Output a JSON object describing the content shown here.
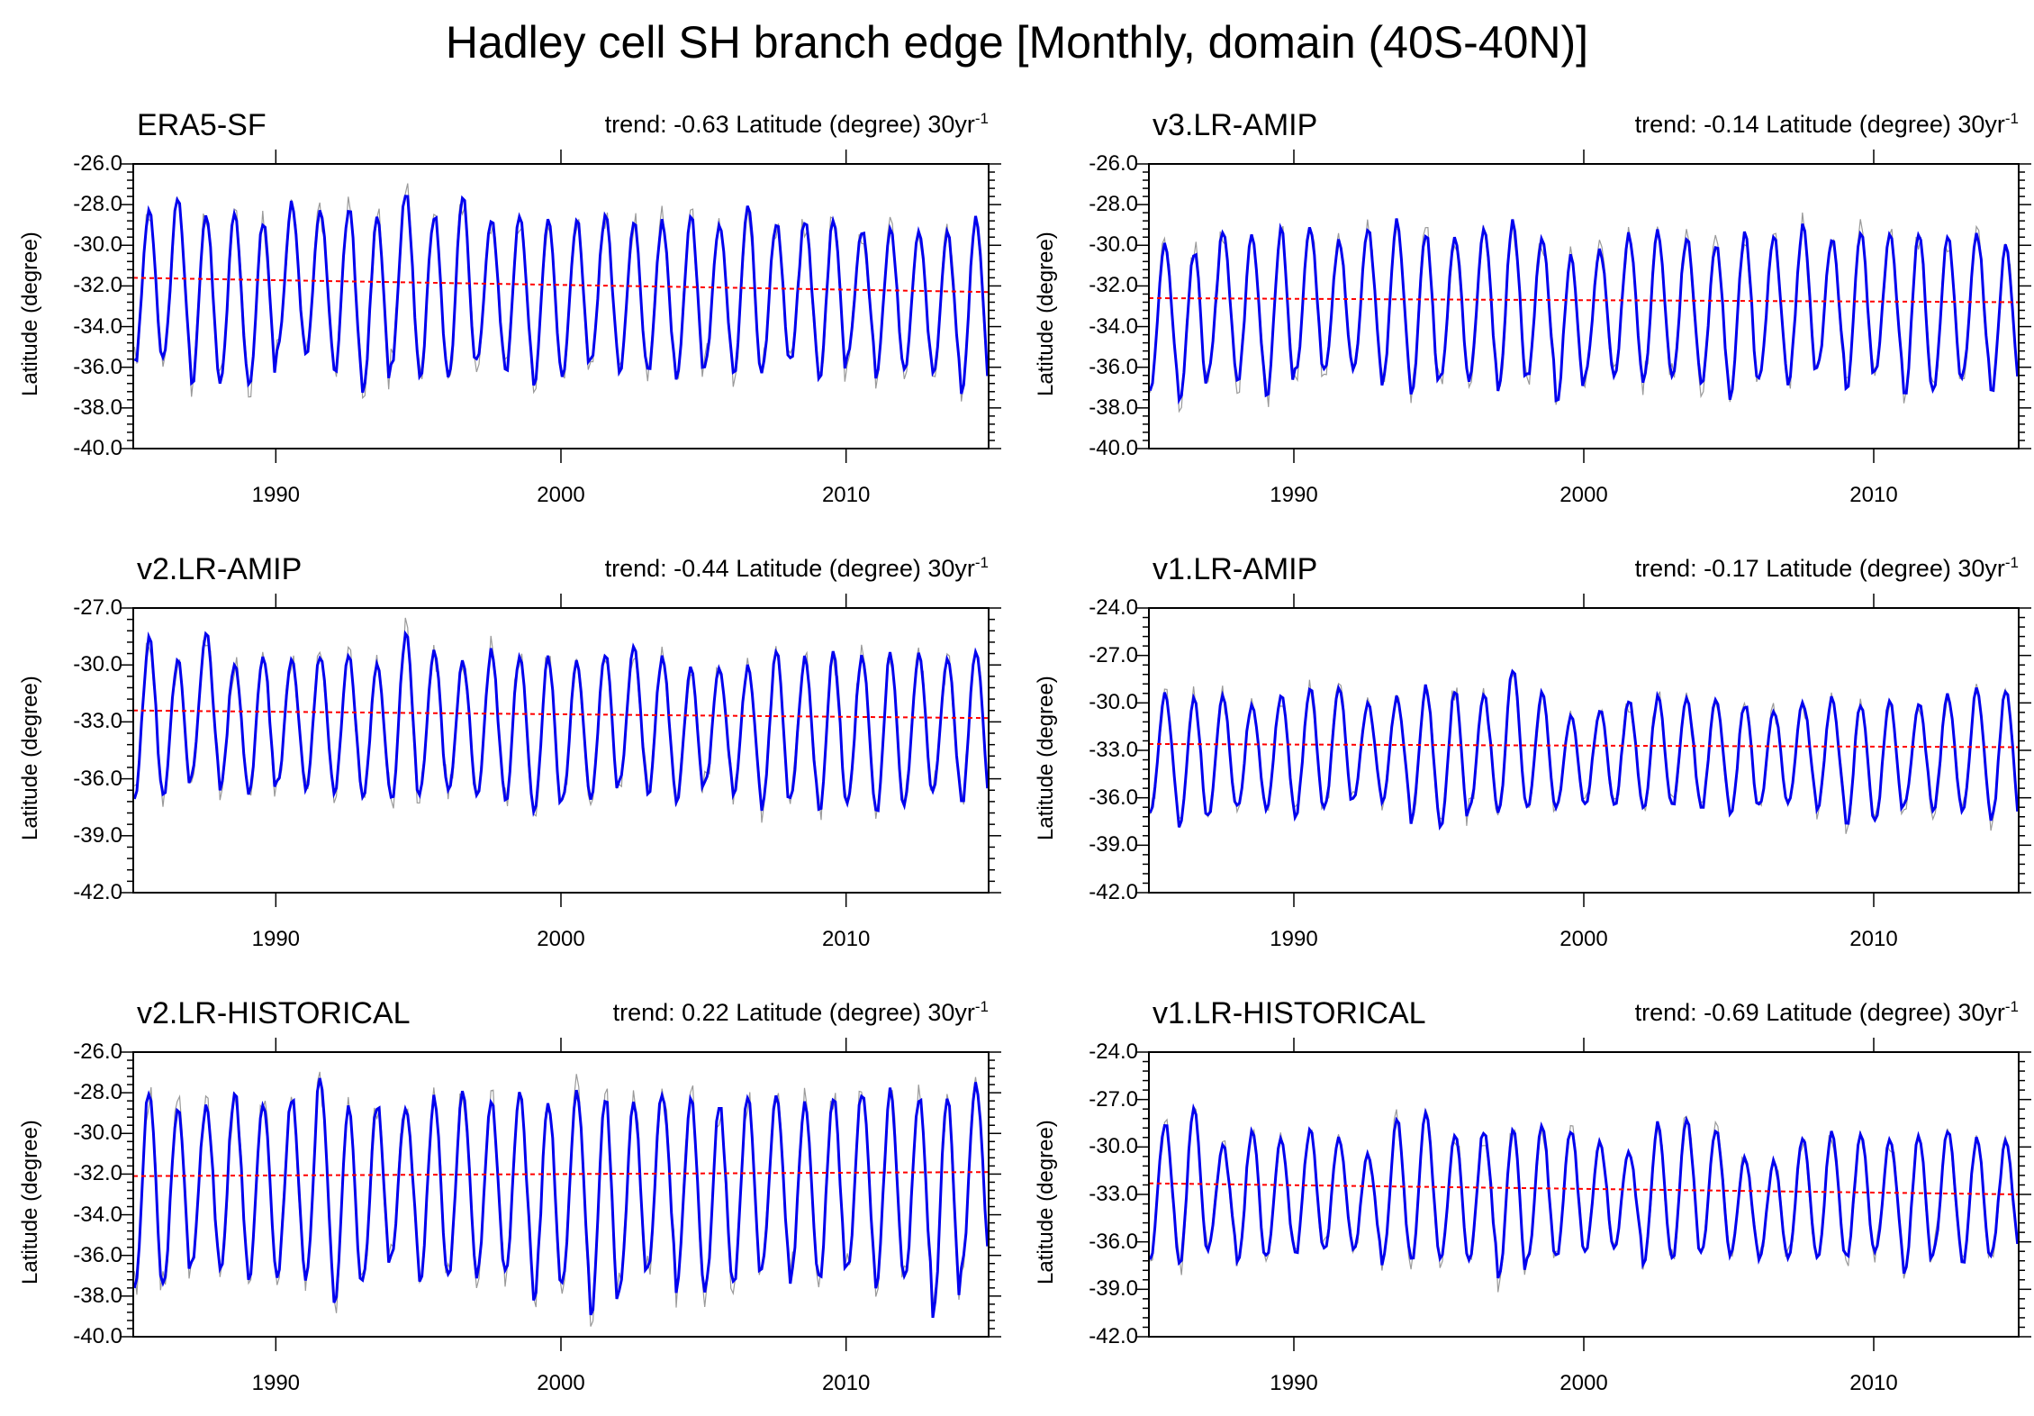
{
  "title": "Hadley cell SH branch edge [Monthly, domain (40S-40N)]",
  "trend_suffix": "30yr",
  "trend_exponent": "-1",
  "colors": {
    "smoothed": "#0000ee",
    "raw": "#9a9a9a",
    "trend": "#ff0000",
    "axis": "#000000"
  },
  "chart_data": [
    {
      "type": "line",
      "name": "ERA5-SF",
      "trend_text": "trend: -0.63 Latitude (degree)",
      "ylabel": "Latitude (degree)",
      "xlim": [
        1985,
        2015
      ],
      "ylim": [
        -40,
        -26
      ],
      "yticks": [
        "-26.0",
        "-28.0",
        "-30.0",
        "-32.0",
        "-34.0",
        "-36.0",
        "-38.0",
        "-40.0"
      ],
      "xticks": [
        "1990",
        "2000",
        "2010"
      ],
      "series": [
        {
          "name": "smoothed",
          "x_start": 1985.0,
          "x_end": 2015.0,
          "annual_max": [
            -28.2,
            -27.8,
            -28.4,
            -28.5,
            -28.8,
            -28.0,
            -28.3,
            -28.2,
            -28.5,
            -27.4,
            -28.5,
            -27.6,
            -28.8,
            -28.6,
            -28.5,
            -28.7,
            -28.6,
            -28.9,
            -28.9,
            -28.6,
            -29.0,
            -27.9,
            -28.8,
            -28.8,
            -28.6,
            -29.3,
            -29.2,
            -29.4,
            -29.5,
            -28.6
          ],
          "annual_min": [
            -35.8,
            -35.5,
            -36.9,
            -36.6,
            -37.0,
            -35.1,
            -35.5,
            -36.3,
            -37.3,
            -35.8,
            -36.5,
            -36.5,
            -35.6,
            -36.3,
            -36.7,
            -36.4,
            -35.8,
            -36.2,
            -36.2,
            -36.7,
            -35.9,
            -36.5,
            -36.1,
            -35.7,
            -36.7,
            -35.3,
            -36.4,
            -36.0,
            -36.4,
            -37.1
          ]
        },
        {
          "name": "trend",
          "start": -31.6,
          "end": -32.3
        }
      ]
    },
    {
      "type": "line",
      "name": "v3.LR-AMIP",
      "trend_text": "trend: -0.14 Latitude (degree)",
      "ylabel": "Latitude (degree)",
      "xlim": [
        1985,
        2015
      ],
      "ylim": [
        -40,
        -26
      ],
      "yticks": [
        "-26.0",
        "-28.0",
        "-30.0",
        "-32.0",
        "-34.0",
        "-36.0",
        "-38.0",
        "-40.0"
      ],
      "xticks": [
        "1990",
        "2000",
        "2010"
      ],
      "series": [
        {
          "name": "smoothed",
          "x_start": 1985.0,
          "x_end": 2015.0,
          "annual_max": [
            -29.9,
            -30.3,
            -29.3,
            -29.6,
            -29.3,
            -29.2,
            -29.8,
            -29.2,
            -28.8,
            -29.5,
            -29.6,
            -29.2,
            -28.8,
            -29.6,
            -30.6,
            -30.2,
            -29.5,
            -29.4,
            -29.6,
            -29.9,
            -29.4,
            -29.6,
            -29.1,
            -29.6,
            -29.4,
            -29.4,
            -29.3,
            -29.4,
            -29.4,
            -30.1
          ],
          "annual_min": [
            -37.0,
            -37.7,
            -36.3,
            -36.7,
            -37.5,
            -36.3,
            -36.2,
            -36.1,
            -36.8,
            -37.4,
            -36.6,
            -36.6,
            -37.0,
            -36.5,
            -37.8,
            -36.4,
            -36.5,
            -36.6,
            -36.3,
            -37.0,
            -37.4,
            -36.6,
            -36.7,
            -36.1,
            -37.2,
            -36.3,
            -37.5,
            -37.2,
            -36.4,
            -37.3
          ]
        },
        {
          "name": "trend",
          "start": -32.6,
          "end": -32.8
        }
      ]
    },
    {
      "type": "line",
      "name": "v2.LR-AMIP",
      "trend_text": "trend: -0.44 Latitude (degree)",
      "ylabel": "Latitude (degree)",
      "xlim": [
        1985,
        2015
      ],
      "ylim": [
        -42,
        -27
      ],
      "yticks": [
        "-27.0",
        "-30.0",
        "-33.0",
        "-36.0",
        "-39.0",
        "-42.0"
      ],
      "xticks": [
        "1990",
        "2000",
        "2010"
      ],
      "series": [
        {
          "name": "smoothed",
          "x_start": 1985.0,
          "x_end": 2015.0,
          "annual_max": [
            -28.6,
            -29.7,
            -28.3,
            -29.8,
            -29.6,
            -29.7,
            -29.4,
            -29.5,
            -29.8,
            -28.4,
            -29.4,
            -29.8,
            -29.3,
            -29.4,
            -29.6,
            -29.9,
            -29.3,
            -29.0,
            -29.5,
            -30.1,
            -30.3,
            -30.1,
            -29.4,
            -29.7,
            -29.4,
            -29.5,
            -29.4,
            -29.3,
            -29.5,
            -29.1
          ],
          "annual_min": [
            -37.0,
            -37.0,
            -35.7,
            -36.5,
            -36.9,
            -36.2,
            -36.7,
            -36.6,
            -37.2,
            -37.2,
            -36.7,
            -36.8,
            -37.0,
            -37.3,
            -37.8,
            -37.0,
            -37.0,
            -36.3,
            -36.8,
            -37.2,
            -36.3,
            -36.8,
            -37.5,
            -37.0,
            -37.8,
            -37.3,
            -37.8,
            -37.2,
            -36.7,
            -37.3
          ]
        },
        {
          "name": "trend",
          "start": -32.4,
          "end": -32.8
        }
      ]
    },
    {
      "type": "line",
      "name": "v1.LR-AMIP",
      "trend_text": "trend: -0.17 Latitude (degree)",
      "ylabel": "Latitude (degree)",
      "xlim": [
        1985,
        2015
      ],
      "ylim": [
        -42,
        -24
      ],
      "yticks": [
        "-24.0",
        "-27.0",
        "-30.0",
        "-33.0",
        "-36.0",
        "-39.0",
        "-42.0"
      ],
      "xticks": [
        "1990",
        "2000",
        "2010"
      ],
      "series": [
        {
          "name": "smoothed",
          "x_start": 1985.0,
          "x_end": 2015.0,
          "annual_max": [
            -29.5,
            -29.8,
            -29.5,
            -30.0,
            -29.5,
            -29.0,
            -28.9,
            -30.0,
            -29.6,
            -29.0,
            -29.3,
            -29.6,
            -27.8,
            -29.5,
            -30.8,
            -30.4,
            -29.8,
            -29.7,
            -29.8,
            -29.6,
            -30.1,
            -30.4,
            -30.0,
            -29.7,
            -30.0,
            -30.0,
            -30.0,
            -29.5,
            -29.1,
            -29.2
          ],
          "annual_min": [
            -37.0,
            -37.7,
            -37.2,
            -36.6,
            -36.8,
            -37.2,
            -36.7,
            -36.1,
            -36.4,
            -37.5,
            -37.8,
            -36.8,
            -36.9,
            -36.7,
            -36.6,
            -36.3,
            -36.6,
            -36.7,
            -36.5,
            -36.7,
            -37.1,
            -36.6,
            -36.2,
            -36.7,
            -37.8,
            -37.3,
            -36.5,
            -36.8,
            -37.1,
            -37.5
          ]
        },
        {
          "name": "trend",
          "start": -32.6,
          "end": -32.8
        }
      ]
    },
    {
      "type": "line",
      "name": "v2.LR-HISTORICAL",
      "trend_text": "trend: 0.22 Latitude (degree)",
      "ylabel": "Latitude (degree)",
      "xlim": [
        1985,
        2015
      ],
      "ylim": [
        -40,
        -26
      ],
      "yticks": [
        "-26.0",
        "-28.0",
        "-30.0",
        "-32.0",
        "-34.0",
        "-36.0",
        "-38.0",
        "-40.0"
      ],
      "xticks": [
        "1990",
        "2000",
        "2010"
      ],
      "series": [
        {
          "name": "smoothed",
          "x_start": 1985.0,
          "x_end": 2015.0,
          "annual_max": [
            -27.8,
            -28.7,
            -28.6,
            -28.0,
            -28.4,
            -28.2,
            -27.2,
            -28.7,
            -28.6,
            -28.6,
            -28.3,
            -28.1,
            -28.4,
            -28.1,
            -28.4,
            -27.8,
            -28.3,
            -28.4,
            -27.9,
            -28.3,
            -28.6,
            -28.2,
            -28.1,
            -28.5,
            -28.3,
            -27.9,
            -27.9,
            -28.2,
            -28.1,
            -27.5
          ],
          "annual_min": [
            -37.8,
            -37.3,
            -36.3,
            -36.6,
            -37.2,
            -36.9,
            -37.3,
            -38.2,
            -37.2,
            -36.0,
            -37.4,
            -36.9,
            -36.9,
            -36.9,
            -38.0,
            -37.2,
            -39.0,
            -37.7,
            -36.4,
            -37.6,
            -37.8,
            -37.4,
            -36.5,
            -37.2,
            -37.2,
            -36.7,
            -37.6,
            -37.2,
            -39.0,
            -36.6
          ]
        },
        {
          "name": "trend",
          "start": -32.1,
          "end": -31.9
        }
      ]
    },
    {
      "type": "line",
      "name": "v1.LR-HISTORICAL",
      "trend_text": "trend: -0.69 Latitude (degree)",
      "ylabel": "Latitude (degree)",
      "xlim": [
        1985,
        2015
      ],
      "ylim": [
        -42,
        -24
      ],
      "yticks": [
        "-24.0",
        "-27.0",
        "-30.0",
        "-33.0",
        "-36.0",
        "-39.0",
        "-42.0"
      ],
      "xticks": [
        "1990",
        "2000",
        "2010"
      ],
      "series": [
        {
          "name": "smoothed",
          "x_start": 1985.0,
          "x_end": 2015.0,
          "annual_max": [
            -28.5,
            -27.6,
            -29.9,
            -29.0,
            -29.6,
            -29.0,
            -29.4,
            -30.5,
            -28.3,
            -27.7,
            -29.2,
            -28.9,
            -29.0,
            -28.7,
            -28.9,
            -29.7,
            -30.3,
            -28.6,
            -28.2,
            -28.8,
            -30.6,
            -30.9,
            -29.4,
            -29.0,
            -29.3,
            -29.4,
            -29.2,
            -29.0,
            -29.5,
            -29.7
          ],
          "annual_min": [
            -36.9,
            -37.4,
            -36.4,
            -37.5,
            -36.8,
            -36.8,
            -36.4,
            -36.6,
            -37.3,
            -37.2,
            -37.3,
            -37.0,
            -38.4,
            -37.2,
            -37.0,
            -36.5,
            -36.3,
            -37.3,
            -37.0,
            -36.6,
            -36.8,
            -37.1,
            -36.9,
            -37.2,
            -37.0,
            -36.7,
            -37.9,
            -36.7,
            -37.4,
            -36.8
          ]
        },
        {
          "name": "trend",
          "start": -32.3,
          "end": -33.0
        }
      ]
    }
  ]
}
